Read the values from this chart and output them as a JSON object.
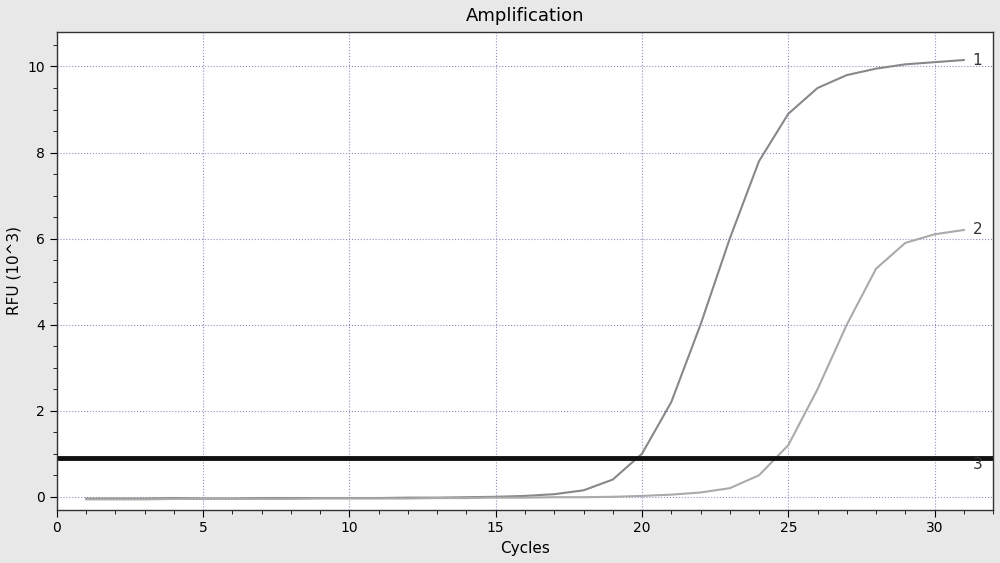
{
  "title": "Amplification",
  "xlabel": "Cycles",
  "ylabel": "RFU (10^3)",
  "xlim": [
    0,
    32
  ],
  "ylim": [
    -0.3,
    10.8
  ],
  "xticks": [
    0,
    5,
    10,
    15,
    20,
    25,
    30
  ],
  "yticks": [
    0,
    2,
    4,
    6,
    8,
    10
  ],
  "background_color": "#e8e8e8",
  "plot_bg_color": "#ffffff",
  "grid_color": "#9090c0",
  "curve1": {
    "x": [
      1,
      2,
      3,
      4,
      5,
      6,
      7,
      8,
      9,
      10,
      11,
      12,
      13,
      14,
      15,
      16,
      17,
      18,
      19,
      20,
      21,
      22,
      23,
      24,
      25,
      26,
      27,
      28,
      29,
      30,
      31
    ],
    "y": [
      -0.04,
      -0.04,
      -0.04,
      -0.03,
      -0.04,
      -0.04,
      -0.03,
      -0.03,
      -0.03,
      -0.03,
      -0.03,
      -0.02,
      -0.02,
      -0.01,
      0.0,
      0.02,
      0.06,
      0.15,
      0.4,
      1.0,
      2.2,
      4.0,
      6.0,
      7.8,
      8.9,
      9.5,
      9.8,
      9.95,
      10.05,
      10.1,
      10.15
    ],
    "color": "#888888",
    "linewidth": 1.5,
    "label": "1"
  },
  "curve2": {
    "x": [
      1,
      2,
      3,
      4,
      5,
      6,
      7,
      8,
      9,
      10,
      11,
      12,
      13,
      14,
      15,
      16,
      17,
      18,
      19,
      20,
      21,
      22,
      23,
      24,
      25,
      26,
      27,
      28,
      29,
      30,
      31
    ],
    "y": [
      -0.06,
      -0.06,
      -0.06,
      -0.05,
      -0.05,
      -0.05,
      -0.05,
      -0.05,
      -0.04,
      -0.04,
      -0.04,
      -0.04,
      -0.03,
      -0.03,
      -0.02,
      -0.02,
      -0.01,
      -0.01,
      0.0,
      0.02,
      0.05,
      0.1,
      0.2,
      0.5,
      1.2,
      2.5,
      4.0,
      5.3,
      5.9,
      6.1,
      6.2
    ],
    "color": "#aaaaaa",
    "linewidth": 1.5,
    "label": "2"
  },
  "curve3": {
    "x": [
      0,
      32
    ],
    "y": [
      0.9,
      0.9
    ],
    "color": "#111111",
    "linewidth": 3.5,
    "label": "3"
  },
  "label_fontsize": 11,
  "title_fontsize": 13,
  "tick_fontsize": 10,
  "annotation_fontsize": 11
}
